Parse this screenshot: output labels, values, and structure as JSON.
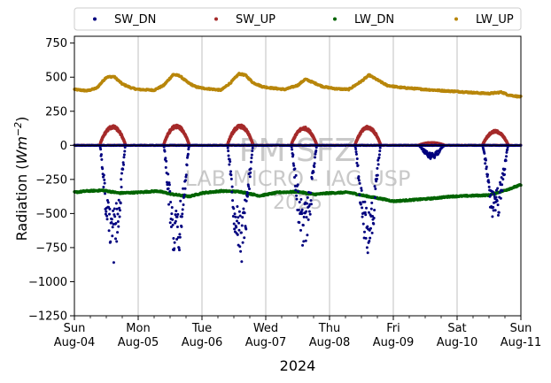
{
  "chart_data": {
    "type": "scatter",
    "title": "",
    "xlabel": "2024",
    "ylabel_main": "Radiation (",
    "ylabel_unit_base": "Wm",
    "ylabel_unit_exp": "−2",
    "ylabel_close": ")",
    "ylim": [
      -1250,
      800
    ],
    "xlim": [
      0,
      7
    ],
    "grid": "vertical",
    "legend_placement": "top, above plot",
    "y_ticks": [
      {
        "value": 750,
        "label": "750"
      },
      {
        "value": 500,
        "label": "500"
      },
      {
        "value": 250,
        "label": "250"
      },
      {
        "value": 0,
        "label": "0"
      },
      {
        "value": -250,
        "label": "−250"
      },
      {
        "value": -500,
        "label": "−500"
      },
      {
        "value": -750,
        "label": "−750"
      },
      {
        "value": -1000,
        "label": "−1000"
      },
      {
        "value": -1250,
        "label": "−1250"
      }
    ],
    "x_ticks": [
      {
        "day": 0,
        "weekday": "Sun",
        "date": "Aug-04"
      },
      {
        "day": 1,
        "weekday": "Mon",
        "date": "Aug-05"
      },
      {
        "day": 2,
        "weekday": "Tue",
        "date": "Aug-06"
      },
      {
        "day": 3,
        "weekday": "Wed",
        "date": "Aug-07"
      },
      {
        "day": 4,
        "weekday": "Thu",
        "date": "Aug-08"
      },
      {
        "day": 5,
        "weekday": "Fri",
        "date": "Aug-09"
      },
      {
        "day": 6,
        "weekday": "Sat",
        "date": "Aug-10"
      },
      {
        "day": 7,
        "weekday": "Sun",
        "date": "Aug-11"
      }
    ],
    "watermark": [
      "PM SFZ",
      "LAB MICRO - IAG USP",
      "2025"
    ],
    "series": [
      {
        "name": "SW_DN",
        "color": "#00007f",
        "kind": "negative-daytime",
        "base": [
          [
            0,
            0
          ],
          [
            7,
            0
          ]
        ],
        "daily_extreme": [
          {
            "day": 0,
            "value": -870
          },
          {
            "day": 1,
            "value": -850
          },
          {
            "day": 2,
            "value": -880
          },
          {
            "day": 3,
            "value": -760
          },
          {
            "day": 4,
            "value": -810
          },
          {
            "day": 5,
            "value": -100
          },
          {
            "day": 6,
            "value": -600
          }
        ]
      },
      {
        "name": "SW_UP",
        "color": "#a52a2a",
        "kind": "positive-daytime",
        "base": [
          [
            0,
            0
          ],
          [
            7,
            0
          ]
        ],
        "daily_extreme": [
          {
            "day": 0,
            "value": 145
          },
          {
            "day": 1,
            "value": 150
          },
          {
            "day": 2,
            "value": 150
          },
          {
            "day": 3,
            "value": 135
          },
          {
            "day": 4,
            "value": 140
          },
          {
            "day": 5,
            "value": 20
          },
          {
            "day": 6,
            "value": 110
          }
        ]
      },
      {
        "name": "LW_DN",
        "color": "#006400",
        "kind": "continuous",
        "points": [
          [
            0,
            -345
          ],
          [
            0.2,
            -335
          ],
          [
            0.45,
            -330
          ],
          [
            0.7,
            -350
          ],
          [
            1.0,
            -345
          ],
          [
            1.3,
            -335
          ],
          [
            1.55,
            -360
          ],
          [
            1.8,
            -375
          ],
          [
            2.0,
            -350
          ],
          [
            2.3,
            -335
          ],
          [
            2.6,
            -340
          ],
          [
            2.9,
            -370
          ],
          [
            3.2,
            -345
          ],
          [
            3.5,
            -340
          ],
          [
            3.75,
            -360
          ],
          [
            4.0,
            -350
          ],
          [
            4.3,
            -345
          ],
          [
            4.55,
            -370
          ],
          [
            4.85,
            -395
          ],
          [
            5.0,
            -410
          ],
          [
            5.3,
            -400
          ],
          [
            5.6,
            -390
          ],
          [
            5.9,
            -375
          ],
          [
            6.2,
            -370
          ],
          [
            6.5,
            -365
          ],
          [
            6.75,
            -330
          ],
          [
            7.0,
            -290
          ]
        ]
      },
      {
        "name": "LW_UP",
        "color": "#b8860b",
        "kind": "continuous",
        "points": [
          [
            0,
            410
          ],
          [
            0.2,
            400
          ],
          [
            0.35,
            420
          ],
          [
            0.5,
            500
          ],
          [
            0.62,
            505
          ],
          [
            0.75,
            450
          ],
          [
            0.9,
            420
          ],
          [
            1.0,
            410
          ],
          [
            1.25,
            405
          ],
          [
            1.4,
            440
          ],
          [
            1.55,
            520
          ],
          [
            1.65,
            510
          ],
          [
            1.78,
            460
          ],
          [
            1.9,
            430
          ],
          [
            2.0,
            420
          ],
          [
            2.3,
            405
          ],
          [
            2.45,
            460
          ],
          [
            2.58,
            525
          ],
          [
            2.68,
            515
          ],
          [
            2.8,
            460
          ],
          [
            2.95,
            430
          ],
          [
            3.1,
            420
          ],
          [
            3.3,
            410
          ],
          [
            3.5,
            440
          ],
          [
            3.62,
            485
          ],
          [
            3.75,
            460
          ],
          [
            3.9,
            430
          ],
          [
            4.1,
            415
          ],
          [
            4.3,
            410
          ],
          [
            4.5,
            470
          ],
          [
            4.62,
            515
          ],
          [
            4.75,
            480
          ],
          [
            4.9,
            440
          ],
          [
            5.1,
            425
          ],
          [
            5.5,
            410
          ],
          [
            5.8,
            400
          ],
          [
            6.0,
            395
          ],
          [
            6.3,
            385
          ],
          [
            6.5,
            380
          ],
          [
            6.7,
            390
          ],
          [
            6.8,
            370
          ],
          [
            7.0,
            355
          ]
        ]
      }
    ]
  }
}
